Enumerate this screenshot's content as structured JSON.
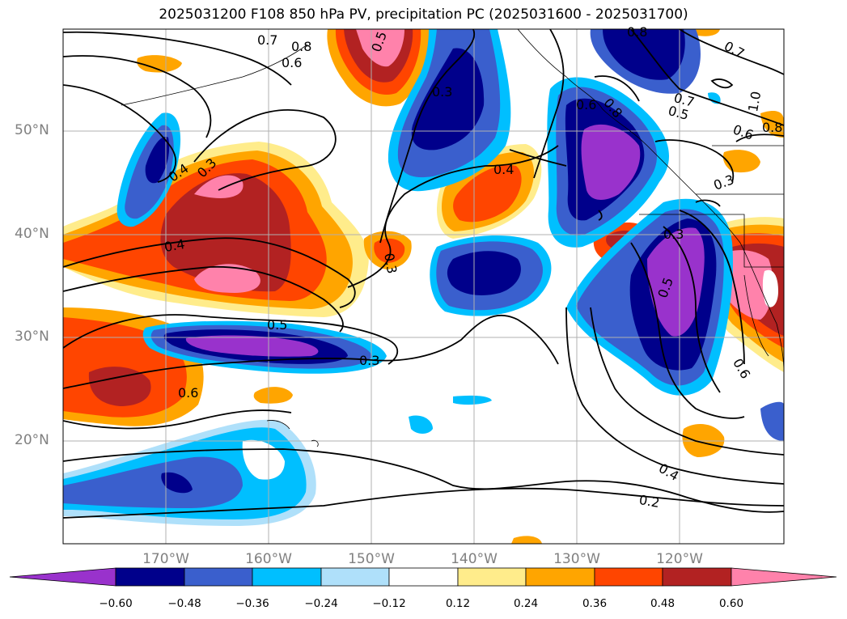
{
  "title": "2025031200 F108 850 hPa PV, precipitation PC (2025031600 - 2025031700)",
  "map": {
    "lat_labels": [
      "50°N",
      "40°N",
      "30°N",
      "20°N"
    ],
    "lon_labels": [
      "170°W",
      "160°W",
      "150°W",
      "140°W",
      "130°W",
      "120°W"
    ],
    "contour_labels": [
      "0.7",
      "0.8",
      "0.5",
      "0.6",
      "0.3",
      "0.8",
      "0.7",
      "0.6",
      "0.4",
      "0.3",
      "0.4",
      "0.3",
      "0.8",
      "0.6",
      "0.7",
      "0.5",
      "0.8",
      "1.0",
      "0.6",
      "0.3",
      "0.4",
      "0.3",
      "0.5",
      "0.5",
      "0.3",
      "0.6",
      "0.4",
      "0.2"
    ]
  },
  "colorbar": {
    "tick_labels": [
      "−0.60",
      "−0.48",
      "−0.36",
      "−0.24",
      "−0.12",
      "0.12",
      "0.24",
      "0.36",
      "0.48",
      "0.60"
    ],
    "colors": [
      "#9932cc",
      "#00008b",
      "#3a5fcd",
      "#00bfff",
      "#afe0fa",
      "#ffffff",
      "#ffec8b",
      "#ffa500",
      "#ff4500",
      "#b22222",
      "#ff82ab"
    ]
  }
}
